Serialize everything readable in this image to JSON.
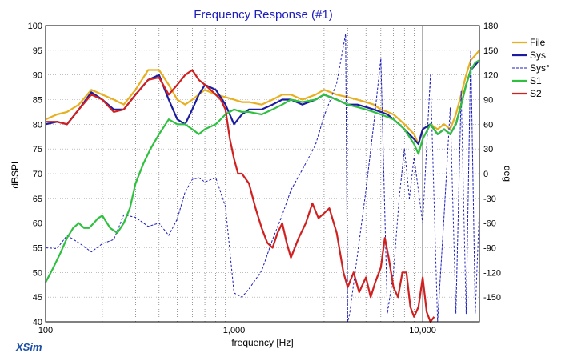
{
  "chart_data": {
    "type": "line",
    "title": "Frequency Response (#1)",
    "xlabel": "frequency [Hz]",
    "ylabel_left": "dBSPL",
    "ylabel_right": "deg",
    "brand": "XSim",
    "x_scale": "log",
    "xlim": [
      100,
      20000
    ],
    "ylim_left": [
      40,
      100
    ],
    "ylim_right": [
      -180,
      180
    ],
    "x_tick_labels": [
      {
        "value": 100,
        "label": "100"
      },
      {
        "value": 1000,
        "label": "1,000"
      },
      {
        "value": 10000,
        "label": "10,000"
      }
    ],
    "y_left_ticks": [
      40,
      45,
      50,
      55,
      60,
      65,
      70,
      75,
      80,
      85,
      90,
      95,
      100
    ],
    "y_right_ticks": [
      -150,
      -120,
      -90,
      -60,
      -30,
      0,
      30,
      60,
      90,
      120,
      150,
      180
    ],
    "grid": true,
    "legend_position": "right",
    "series": [
      {
        "name": "File",
        "color": "#e8b020",
        "style": "solid",
        "axis": "left",
        "x": [
          100,
          115,
          130,
          150,
          175,
          200,
          230,
          260,
          300,
          350,
          400,
          450,
          500,
          550,
          600,
          650,
          700,
          800,
          900,
          1000,
          1100,
          1200,
          1400,
          1600,
          1800,
          2000,
          2300,
          2700,
          3000,
          3500,
          4000,
          4500,
          5000,
          5500,
          6000,
          6500,
          7000,
          7500,
          8000,
          9000,
          9500,
          10000,
          11000,
          12000,
          13000,
          14000,
          15000,
          16000,
          17000,
          18000,
          19000,
          20000
        ],
        "y": [
          81,
          82,
          82.5,
          84,
          87,
          86,
          85,
          84,
          87,
          91,
          91,
          88,
          85,
          84,
          85,
          86,
          87,
          86,
          85.5,
          85,
          84.5,
          84.5,
          84,
          85,
          86,
          86,
          85,
          86,
          87,
          86,
          85.5,
          85,
          84.5,
          84,
          83,
          82.5,
          82,
          81,
          80,
          78,
          76,
          79,
          80,
          79,
          80,
          79,
          82,
          86,
          90,
          93,
          94,
          95
        ]
      },
      {
        "name": "Sys",
        "color": "#1c1ca0",
        "style": "solid",
        "axis": "left",
        "x": [
          100,
          115,
          130,
          150,
          175,
          200,
          230,
          260,
          300,
          350,
          400,
          450,
          500,
          550,
          600,
          650,
          700,
          800,
          900,
          1000,
          1100,
          1200,
          1400,
          1600,
          1800,
          2000,
          2300,
          2700,
          3000,
          3500,
          4000,
          4500,
          5000,
          5500,
          6000,
          6500,
          7000,
          7500,
          8000,
          9000,
          9500,
          10000,
          11000,
          12000,
          13000,
          14000,
          15000,
          16000,
          17000,
          18000,
          19000,
          20000
        ],
        "y": [
          80,
          80.5,
          80,
          83,
          86.5,
          85,
          83,
          83,
          86,
          89,
          90,
          85,
          81,
          80,
          83,
          86,
          88,
          87,
          84,
          80,
          82,
          83,
          83,
          84,
          85,
          85,
          84,
          85,
          86,
          85,
          84,
          84,
          83.5,
          83,
          82.5,
          82,
          81,
          80,
          79,
          77,
          76,
          79,
          80,
          78,
          79,
          78,
          80,
          84,
          88,
          91,
          92,
          93
        ]
      },
      {
        "name": "Sys°",
        "color": "#1c1cbe",
        "style": "dashed",
        "axis": "right",
        "x": [
          100,
          115,
          130,
          150,
          175,
          200,
          230,
          260,
          300,
          350,
          400,
          450,
          500,
          550,
          600,
          650,
          700,
          800,
          900,
          1000,
          1100,
          1200,
          1400,
          1600,
          1800,
          2000,
          2300,
          2700,
          3000,
          3500,
          3900,
          4000,
          4100,
          4500,
          5000,
          5500,
          6000,
          6500,
          7000,
          7500,
          8000,
          8500,
          9000,
          10000,
          11000,
          12000,
          13000,
          14000,
          15000,
          16000,
          17000,
          18000,
          19000,
          20000
        ],
        "y": [
          -90,
          -91,
          -75,
          -84,
          -95,
          -85,
          -80,
          -50,
          -53,
          -64,
          -60,
          -75,
          -55,
          -22,
          -7,
          -5,
          -10,
          -5,
          -40,
          -145,
          -150,
          -140,
          -118,
          -80,
          -50,
          -20,
          5,
          35,
          70,
          110,
          170,
          -180,
          -170,
          -100,
          -20,
          60,
          140,
          -170,
          -120,
          -30,
          30,
          -30,
          20,
          -60,
          120,
          -180,
          -50,
          80,
          -170,
          100,
          -170,
          150,
          -170,
          -40
        ]
      },
      {
        "name": "S1",
        "color": "#30c040",
        "style": "solid",
        "axis": "left",
        "x": [
          100,
          110,
          120,
          130,
          140,
          150,
          160,
          170,
          180,
          190,
          200,
          220,
          240,
          260,
          280,
          300,
          330,
          360,
          400,
          450,
          500,
          550,
          600,
          650,
          700,
          800,
          900,
          1000,
          1100,
          1200,
          1400,
          1600,
          1800,
          2000,
          2300,
          2700,
          3000,
          3500,
          4000,
          4500,
          5000,
          5500,
          6000,
          6500,
          7000,
          7500,
          8000,
          9000,
          9500,
          10000,
          11000,
          12000,
          13000,
          14000,
          15000,
          16000,
          17000,
          18000,
          19000,
          20000
        ],
        "y": [
          48,
          51,
          54,
          57,
          59,
          60,
          59,
          59,
          60,
          61,
          61.5,
          59,
          58,
          60,
          63,
          68,
          72,
          75,
          78,
          81,
          80,
          80,
          79,
          78,
          79,
          80,
          82,
          83,
          82.5,
          82.5,
          82,
          83,
          84,
          85,
          84.5,
          85,
          86,
          85,
          84,
          83.5,
          83,
          82.5,
          82,
          81.5,
          81,
          80,
          79,
          76,
          74,
          77,
          80,
          78,
          79,
          78,
          80,
          84,
          88,
          91,
          92.5,
          93
        ]
      },
      {
        "name": "S2",
        "color": "#d02020",
        "style": "solid",
        "axis": "left",
        "x": [
          100,
          115,
          130,
          150,
          175,
          200,
          230,
          260,
          300,
          350,
          400,
          450,
          500,
          550,
          600,
          650,
          700,
          750,
          800,
          850,
          900,
          950,
          1000,
          1050,
          1100,
          1200,
          1300,
          1400,
          1500,
          1600,
          1700,
          1800,
          1900,
          2000,
          2200,
          2400,
          2600,
          2800,
          3000,
          3200,
          3500,
          3800,
          4000,
          4300,
          4600,
          5000,
          5300,
          5600,
          6000,
          6300,
          6600,
          7000,
          7400,
          7800,
          8200,
          8600,
          9000,
          9500,
          10000,
          10500,
          11000,
          11500
        ],
        "y": [
          80.5,
          80.5,
          80,
          83,
          86,
          85,
          82.5,
          83,
          86,
          89,
          89.5,
          86,
          88,
          90,
          91,
          89,
          88,
          87,
          86,
          85,
          83,
          77,
          73,
          70,
          70,
          68,
          63,
          59,
          56,
          55,
          58,
          60,
          56,
          53,
          57,
          60,
          64,
          61,
          62,
          63,
          58,
          50,
          47,
          50,
          46,
          49,
          45,
          48,
          51,
          57,
          53,
          47,
          45,
          50,
          50,
          43,
          41,
          43,
          49,
          42,
          40,
          41
        ]
      }
    ]
  }
}
